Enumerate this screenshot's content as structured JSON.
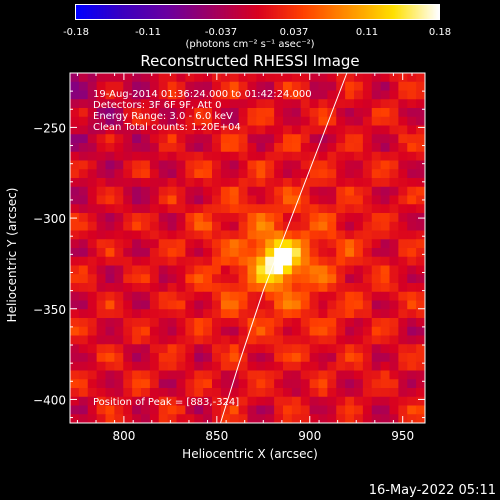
{
  "colorbar": {
    "ticks": [
      "-0.18",
      "-0.11",
      "-0.037",
      "0.037",
      "0.11",
      "0.18"
    ],
    "unit_label": "(photons cm⁻² s⁻¹ asec⁻²)",
    "colormap": [
      "#0000ff",
      "#3a00c0",
      "#6a00a0",
      "#a00060",
      "#d80020",
      "#ff4000",
      "#ff9000",
      "#ffe000",
      "#ffffff"
    ]
  },
  "chart_data": {
    "type": "heatmap",
    "title": "Reconstructed RHESSI Image",
    "xlabel": "Heliocentric X (arcsec)",
    "ylabel": "Heliocentric Y (arcsec)",
    "xlim": [
      771,
      962
    ],
    "ylim": [
      -413,
      -220
    ],
    "xticks": [
      800,
      850,
      900,
      950
    ],
    "yticks": [
      -250,
      -300,
      -350,
      -400
    ],
    "grid": false,
    "peak": {
      "x": 883,
      "y": -324,
      "value": 0.18
    },
    "value_range": [
      -0.18,
      0.18
    ],
    "limb_curve": [
      [
        852,
        -413
      ],
      [
        862,
        -380
      ],
      [
        875,
        -340
      ],
      [
        890,
        -300
      ],
      [
        905,
        -260
      ],
      [
        920,
        -220
      ]
    ]
  },
  "info_lines": [
    "19-Aug-2014 01:36:24.000 to 01:42:24.000",
    "Detectors: 3F 6F 9F, Att 0",
    "Energy Range: 3.0 - 6.0 keV",
    "Clean     Total counts: 1.20E+04"
  ],
  "peak_label": "Position of Peak = [883,-324]",
  "footer_date": "16-May-2022 05:11"
}
